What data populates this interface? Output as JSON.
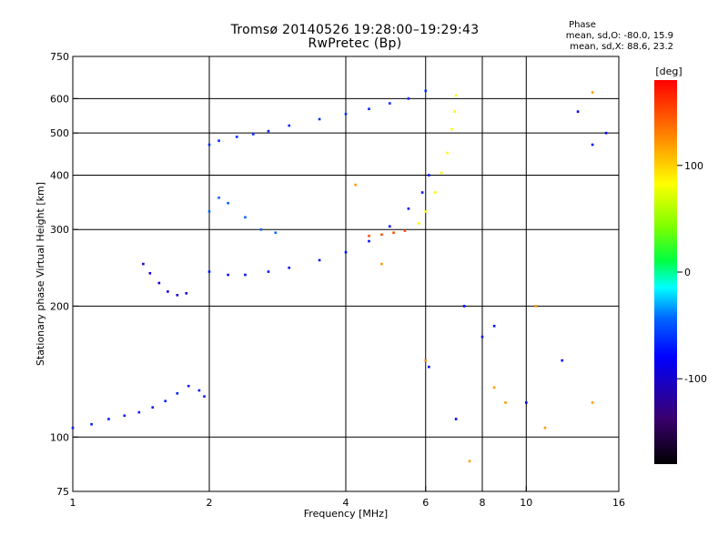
{
  "header": {
    "title_line1": "Tromsø 20140526 19:28:00–19:29:43",
    "title_line2": "RwPretec (Bp)"
  },
  "phase_info": {
    "heading": "Phase",
    "line_o": "mean, sd,O: -80.0, 15.9",
    "line_x": "mean, sd,X:  88.6, 23.2"
  },
  "chart_data": {
    "type": "scatter",
    "title": "Tromsø 20140526 19:28:00–19:29:43",
    "subtitle": "RwPretec (Bp)",
    "xlabel": "Frequency [MHz]",
    "ylabel": "Stationary phase Virtual Height [km]",
    "xscale": "log",
    "yscale": "log",
    "xlim": [
      1,
      16
    ],
    "ylim": [
      75,
      750
    ],
    "x_ticks": [
      1,
      2,
      4,
      6,
      8,
      10,
      16
    ],
    "y_ticks": [
      75,
      100,
      200,
      300,
      400,
      500,
      600,
      750
    ],
    "grid_x": [
      2,
      4,
      6,
      8,
      10
    ],
    "grid_y": [
      100,
      200,
      300,
      400,
      500,
      600
    ],
    "colorbar": {
      "label": "[deg]",
      "range": [
        -180,
        180
      ],
      "ticks": [
        -100,
        0,
        100
      ]
    },
    "series": [
      {
        "name": "",
        "color_phase": -70,
        "points": [
          [
            1.0,
            105
          ],
          [
            1.1,
            107
          ],
          [
            1.2,
            110
          ],
          [
            1.3,
            112
          ],
          [
            1.4,
            114
          ],
          [
            1.5,
            117
          ],
          [
            1.6,
            121
          ],
          [
            1.7,
            126
          ],
          [
            1.8,
            131
          ],
          [
            1.9,
            128
          ],
          [
            1.95,
            124
          ]
        ]
      },
      {
        "name": "",
        "color_phase": -95,
        "points": [
          [
            1.43,
            250
          ],
          [
            1.48,
            238
          ],
          [
            1.55,
            226
          ],
          [
            1.62,
            216
          ],
          [
            1.7,
            212
          ],
          [
            1.78,
            214
          ]
        ]
      },
      {
        "name": "",
        "color_phase": -65,
        "points": [
          [
            2.0,
            470
          ],
          [
            2.1,
            480
          ],
          [
            2.3,
            490
          ],
          [
            2.5,
            497
          ],
          [
            2.7,
            505
          ],
          [
            3.0,
            520
          ],
          [
            3.5,
            538
          ],
          [
            4.0,
            553
          ],
          [
            4.5,
            568
          ],
          [
            5.0,
            585
          ],
          [
            5.5,
            600
          ],
          [
            6.0,
            625
          ]
        ]
      },
      {
        "name": "",
        "color_phase": -75,
        "points": [
          [
            2.0,
            240
          ],
          [
            2.2,
            236
          ],
          [
            2.4,
            236
          ],
          [
            2.7,
            240
          ],
          [
            3.0,
            245
          ],
          [
            3.5,
            255
          ],
          [
            4.0,
            266
          ],
          [
            4.5,
            282
          ],
          [
            5.0,
            305
          ],
          [
            5.5,
            335
          ],
          [
            5.9,
            365
          ],
          [
            6.1,
            400
          ]
        ]
      },
      {
        "name": "",
        "color_phase": -45,
        "points": [
          [
            2.0,
            330
          ],
          [
            2.1,
            355
          ],
          [
            2.2,
            345
          ],
          [
            2.4,
            320
          ],
          [
            2.6,
            300
          ],
          [
            2.8,
            295
          ]
        ]
      },
      {
        "name": "",
        "color_phase": 85,
        "points": [
          [
            5.8,
            310
          ],
          [
            6.0,
            330
          ],
          [
            6.3,
            365
          ],
          [
            6.5,
            405
          ],
          [
            6.7,
            450
          ],
          [
            6.85,
            510
          ],
          [
            6.95,
            560
          ],
          [
            7.0,
            610
          ]
        ]
      },
      {
        "name": "",
        "color_phase": 150,
        "points": [
          [
            4.5,
            290
          ],
          [
            4.8,
            292
          ],
          [
            5.1,
            295
          ],
          [
            5.4,
            298
          ]
        ]
      },
      {
        "name": "",
        "color_phase": -80,
        "points": [
          [
            6.0,
            150
          ],
          [
            6.1,
            145
          ],
          [
            7.0,
            110
          ],
          [
            7.3,
            200
          ],
          [
            8.0,
            170
          ],
          [
            8.5,
            180
          ],
          [
            10.0,
            120
          ],
          [
            12.0,
            150
          ],
          [
            13.0,
            560
          ],
          [
            14.0,
            470
          ],
          [
            15.0,
            500
          ]
        ]
      },
      {
        "name": "",
        "color_phase": 120,
        "points": [
          [
            4.2,
            380
          ],
          [
            4.8,
            250
          ],
          [
            6.0,
            150
          ],
          [
            7.5,
            88
          ],
          [
            8.5,
            130
          ],
          [
            9.0,
            120
          ],
          [
            10.5,
            200
          ],
          [
            11.0,
            105
          ],
          [
            14.0,
            620
          ],
          [
            14.0,
            120
          ]
        ]
      }
    ]
  }
}
